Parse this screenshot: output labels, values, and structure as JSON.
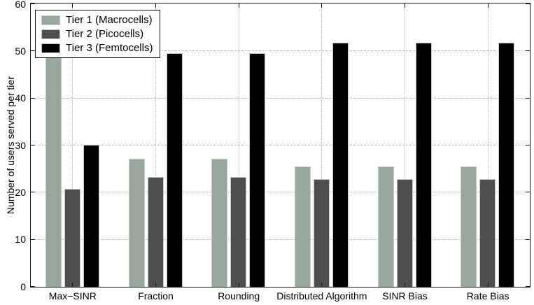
{
  "chart_data": {
    "type": "bar",
    "title": "",
    "xlabel": "",
    "ylabel": "Number of users served per tier",
    "ylim": [
      0,
      60
    ],
    "yticks": [
      0,
      10,
      20,
      30,
      40,
      50,
      60
    ],
    "grid": true,
    "grid_style": "dotted",
    "legend_position": "top-left",
    "categories": [
      "Max−SINR",
      "Fraction",
      "Rounding",
      "Distributed Algorithm",
      "SINR Bias",
      "Rate Bias"
    ],
    "series": [
      {
        "name": "Tier 1 (Macrocells)",
        "color": "#99A89D",
        "values": [
          49.0,
          27.2,
          27.2,
          25.6,
          25.6,
          25.6
        ]
      },
      {
        "name": "Tier 2 (Picocells)",
        "color": "#4E4E4E",
        "values": [
          20.8,
          23.3,
          23.3,
          22.8,
          22.8,
          22.8
        ]
      },
      {
        "name": "Tier 3 (Femtocells)",
        "color": "#000000",
        "values": [
          30.2,
          49.6,
          49.6,
          51.8,
          51.8,
          51.8
        ]
      }
    ],
    "colors": {
      "axis": "#1a1a1a",
      "gridline": "#b0b0b0",
      "background": "#ffffff"
    }
  }
}
